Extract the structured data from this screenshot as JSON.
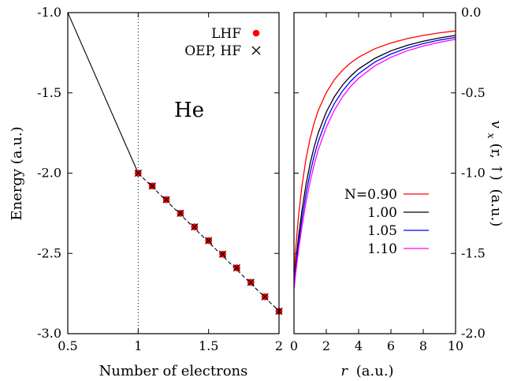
{
  "chart_data": [
    {
      "type": "scatter",
      "panel": "left",
      "xlabel": "Number of electrons",
      "ylabel": "Energy (a.u.)",
      "xlim": [
        0.5,
        2
      ],
      "ylim": [
        -3.0,
        -1.0
      ],
      "xticks": [
        0.5,
        1,
        1.5,
        2
      ],
      "xtick_labels": [
        "0.5",
        "1",
        "1.5",
        "2"
      ],
      "yticks": [
        -3.0,
        -2.5,
        -2.0,
        -1.5,
        -1.0
      ],
      "ytick_labels": [
        "-3.0",
        "-2.5",
        "-2.0",
        "-1.5",
        "-1.0"
      ],
      "annotation": "He",
      "legend_position": "top-right",
      "reference_line": {
        "x": 1,
        "style": "dotted"
      },
      "lines": [
        {
          "style": "solid",
          "x": [
            0.5,
            1.0
          ],
          "y": [
            -1.0,
            -2.0
          ]
        },
        {
          "style": "dashed",
          "x": [
            1.0,
            2.0
          ],
          "y": [
            -2.0,
            -2.86
          ]
        }
      ],
      "series": [
        {
          "name": "LHF",
          "marker": "filled-circle",
          "color": "#ff0000",
          "x": [
            1.0,
            1.1,
            1.2,
            1.3,
            1.4,
            1.5,
            1.6,
            1.7,
            1.8,
            1.9,
            2.0
          ],
          "y": [
            -2.0,
            -2.08,
            -2.165,
            -2.25,
            -2.335,
            -2.42,
            -2.505,
            -2.59,
            -2.68,
            -2.77,
            -2.86
          ]
        },
        {
          "name": "OEP, HF",
          "marker": "cross",
          "color": "#000000",
          "x": [
            1.0,
            1.1,
            1.2,
            1.3,
            1.4,
            1.5,
            1.6,
            1.7,
            1.8,
            1.9,
            2.0
          ],
          "y": [
            -2.0,
            -2.08,
            -2.165,
            -2.25,
            -2.335,
            -2.42,
            -2.505,
            -2.59,
            -2.68,
            -2.77,
            -2.86
          ]
        }
      ]
    },
    {
      "type": "line",
      "panel": "right",
      "xlabel_var": "r",
      "xlabel_unit": "(a.u.)",
      "ylabel_var": "v",
      "ylabel_sub": "x",
      "ylabel_args": "(r, ↑)",
      "ylabel_unit": "(a.u.)",
      "xlim": [
        0,
        10
      ],
      "ylim": [
        -2.0,
        0.0
      ],
      "xticks": [
        0,
        2,
        4,
        6,
        8,
        10
      ],
      "xtick_labels": [
        "0",
        "2",
        "4",
        "6",
        "8",
        "10"
      ],
      "yticks": [
        -2.0,
        -1.5,
        -1.0,
        -0.5,
        0.0
      ],
      "ytick_labels": [
        "-2.0",
        "-1.5",
        "-1.0",
        "-0.5",
        "0.0"
      ],
      "legend_position": "center-right",
      "x": [
        0.01,
        0.05,
        0.1,
        0.2,
        0.3,
        0.5,
        0.75,
        1.0,
        1.25,
        1.5,
        2.0,
        2.5,
        3.0,
        3.5,
        4.0,
        5.0,
        6.0,
        7.0,
        8.0,
        9.0,
        10.0
      ],
      "series": [
        {
          "name": "N=0.90",
          "color": "#ff0000",
          "y": [
            -1.616,
            -1.556,
            -1.485,
            -1.358,
            -1.249,
            -1.075,
            -0.907,
            -0.783,
            -0.687,
            -0.61,
            -0.498,
            -0.418,
            -0.359,
            -0.314,
            -0.278,
            -0.225,
            -0.189,
            -0.162,
            -0.142,
            -0.126,
            -0.114
          ]
        },
        {
          "name": "1.00",
          "color": "#000000",
          "y": [
            -1.682,
            -1.634,
            -1.576,
            -1.472,
            -1.38,
            -1.227,
            -1.068,
            -0.94,
            -0.836,
            -0.75,
            -0.619,
            -0.524,
            -0.452,
            -0.396,
            -0.351,
            -0.285,
            -0.238,
            -0.204,
            -0.178,
            -0.158,
            -0.142
          ]
        },
        {
          "name": "1.05",
          "color": "#0000ff",
          "y": [
            -1.701,
            -1.658,
            -1.604,
            -1.51,
            -1.425,
            -1.28,
            -1.126,
            -0.998,
            -0.892,
            -0.804,
            -0.667,
            -0.566,
            -0.489,
            -0.428,
            -0.38,
            -0.308,
            -0.258,
            -0.221,
            -0.193,
            -0.171,
            -0.154
          ]
        },
        {
          "name": "1.10",
          "color": "#ff00ff",
          "y": [
            -1.718,
            -1.679,
            -1.63,
            -1.545,
            -1.465,
            -1.328,
            -1.179,
            -1.053,
            -0.946,
            -0.856,
            -0.714,
            -0.607,
            -0.525,
            -0.46,
            -0.409,
            -0.332,
            -0.278,
            -0.238,
            -0.208,
            -0.185,
            -0.166
          ]
        }
      ]
    }
  ]
}
